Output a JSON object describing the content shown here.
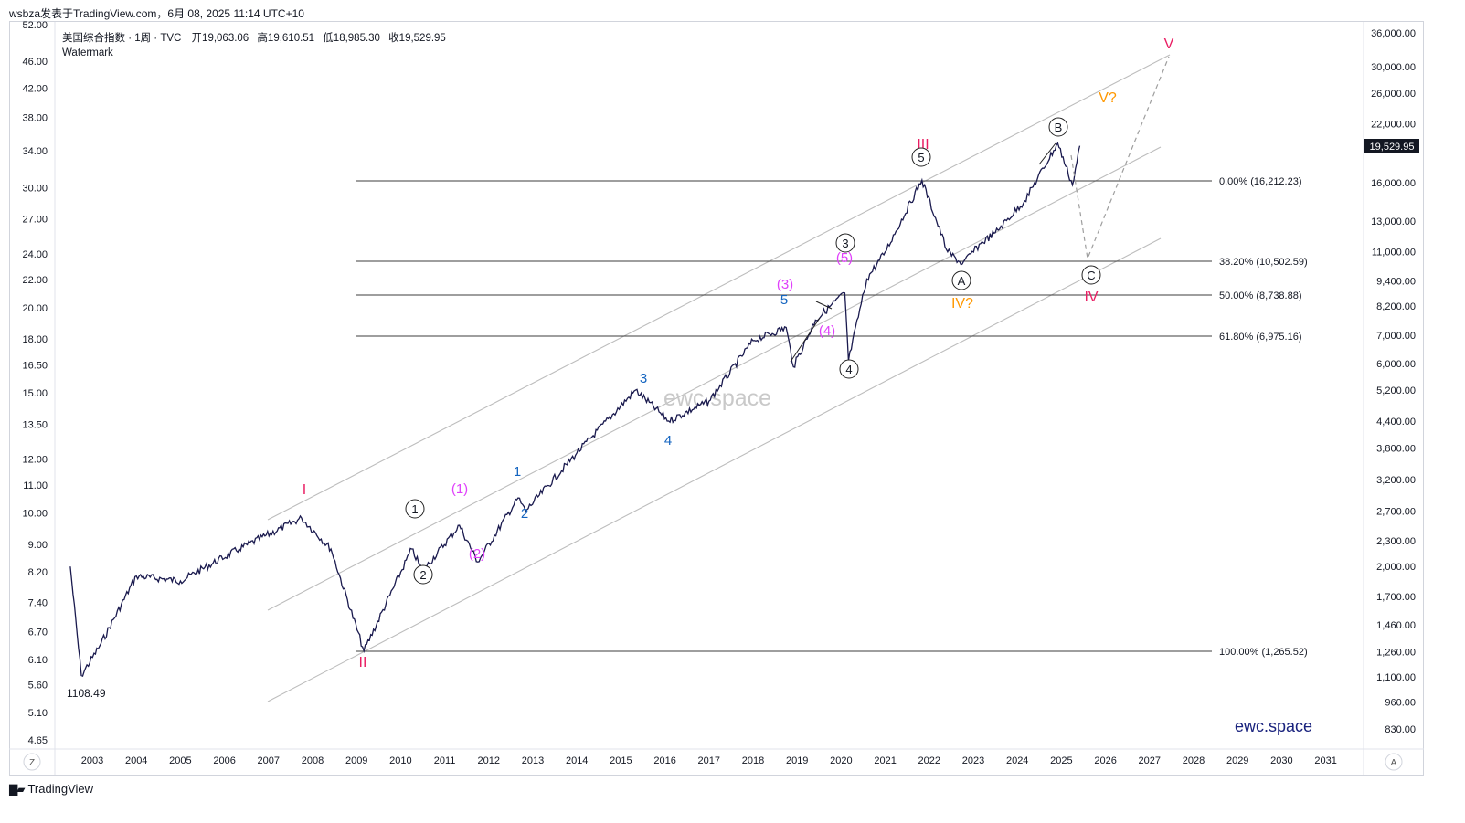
{
  "header": {
    "publish_line": "wsbza发表于TradingView.com，6月 08, 2025 11:14 UTC+10"
  },
  "symbol_info": {
    "name": "美国综合指数 · 1周 · TVC",
    "open_label": "开",
    "open": "19,063.06",
    "high_label": "高",
    "high": "19,610.51",
    "low_label": "低",
    "low": "18,985.30",
    "close_label": "收",
    "close": "19,529.95",
    "watermark_label": "Watermark"
  },
  "left_scale": {
    "ticks": [
      "52.00",
      "46.00",
      "42.00",
      "38.00",
      "34.00",
      "30.00",
      "27.00",
      "24.00",
      "22.00",
      "20.00",
      "18.00",
      "16.50",
      "15.00",
      "13.50",
      "12.00",
      "11.00",
      "10.00",
      "9.00",
      "8.20",
      "7.40",
      "6.70",
      "6.10",
      "5.60",
      "5.10",
      "4.65"
    ],
    "corner_label": "Z"
  },
  "right_scale": {
    "ticks": [
      "36,000.00",
      "30,000.00",
      "26,000.00",
      "22,000.00",
      "16,000.00",
      "13,000.00",
      "11,000.00",
      "9,400.00",
      "8,200.00",
      "7,000.00",
      "6,000.00",
      "5,200.00",
      "4,400.00",
      "3,800.00",
      "3,200.00",
      "2,700.00",
      "2,300.00",
      "2,000.00",
      "1,700.00",
      "1,460.00",
      "1,260.00",
      "1,100.00",
      "960.00",
      "830.00"
    ],
    "last_price": "19,529.95",
    "corner_label": "A"
  },
  "time_scale": {
    "years": [
      "2003",
      "2004",
      "2005",
      "2006",
      "2007",
      "2008",
      "2009",
      "2010",
      "2011",
      "2012",
      "2013",
      "2014",
      "2015",
      "2016",
      "2017",
      "2018",
      "2019",
      "2020",
      "2021",
      "2022",
      "2023",
      "2024",
      "2025",
      "2026",
      "2027",
      "2028",
      "2029",
      "2030",
      "2031"
    ]
  },
  "fib_levels": [
    {
      "label": "0.00% (16,212.23)"
    },
    {
      "label": "38.20% (10,502.59)"
    },
    {
      "label": "50.00% (8,738.88)"
    },
    {
      "label": "61.80% (6,975.16)"
    },
    {
      "label": "100.00% (1,265.52)"
    }
  ],
  "annotations": {
    "low_2003": "1108.49",
    "watermark_center": "ewc.space",
    "watermark_corner": "ewc.space"
  },
  "wave_labels": {
    "red": [
      "I",
      "II",
      "III",
      "IV",
      "V"
    ],
    "orange": [
      "IV?",
      "V?"
    ],
    "circled": [
      "1",
      "2",
      "3",
      "4",
      "5",
      "A",
      "B",
      "C"
    ],
    "magenta": [
      "(1)",
      "(2)",
      "(3)",
      "(4)",
      "(5)"
    ],
    "blue": [
      "1",
      "2",
      "3",
      "4",
      "5"
    ]
  },
  "chart_data": {
    "type": "line",
    "title": "美国综合指数 · 1周 · TVC",
    "y_scale": "log",
    "ylim": [
      830,
      36000
    ],
    "x_range": [
      "2002-06",
      "2031-06"
    ],
    "series": [
      {
        "x": [
          "2002-07",
          "2002-10",
          "2003-03",
          "2004-01",
          "2005-01",
          "2006-05",
          "2007-10",
          "2008-06",
          "2009-03",
          "2010-04",
          "2010-07",
          "2011-05",
          "2011-10",
          "2012-09",
          "2012-11",
          "2014-01",
          "2015-05",
          "2016-02",
          "2017-01",
          "2018-01",
          "2018-10",
          "2018-12",
          "2019-06",
          "2020-02",
          "2020-03",
          "2020-08",
          "2021-01",
          "2021-11",
          "2022-06",
          "2022-10",
          "2023-03",
          "2023-07",
          "2024-03",
          "2024-12",
          "2025-04",
          "2025-06"
        ],
        "values": [
          2000,
          1108.49,
          1300,
          1900,
          1850,
          2200,
          2600,
          2200,
          1265.52,
          2200,
          1950,
          2500,
          2050,
          2900,
          2700,
          3700,
          5200,
          4400,
          4900,
          6800,
          7300,
          5900,
          7600,
          8800,
          6100,
          9500,
          11000,
          16212.23,
          11000,
          10300,
          11500,
          12200,
          14500,
          19800,
          15800,
          19529.95
        ]
      }
    ],
    "fib_retracement": [
      {
        "ratio": "0.00%",
        "value": 16212.23
      },
      {
        "ratio": "38.20%",
        "value": 10502.59
      },
      {
        "ratio": "50.00%",
        "value": 8738.88
      },
      {
        "ratio": "61.80%",
        "value": 6975.16
      },
      {
        "ratio": "100.00%",
        "value": 1265.52
      }
    ],
    "grid": false
  },
  "colors": {
    "price_line": "#1a1a4e",
    "red_wave": "#e91e63",
    "magenta_wave": "#e040fb",
    "blue_wave": "#1565c0",
    "orange_wave": "#ff9800",
    "channel": "#b8b8b8",
    "fib_line": "#444444",
    "watermark_corner": "#1a237e"
  }
}
